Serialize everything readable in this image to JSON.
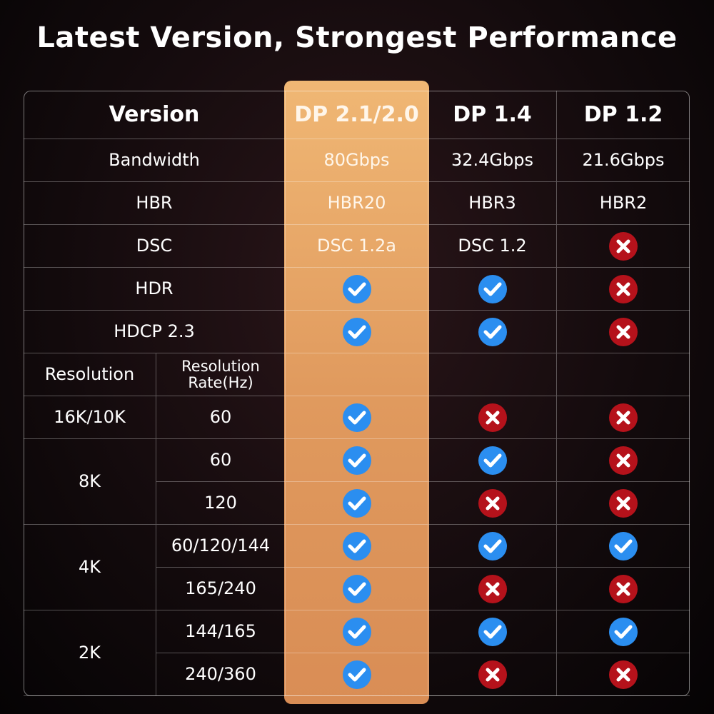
{
  "header": {
    "title": "Latest Version, Strongest Performance"
  },
  "table": {
    "columns": [
      "Version",
      "DP 2.1/2.0",
      "DP 1.4",
      "DP 1.2"
    ],
    "features": [
      {
        "label": "Bandwidth",
        "cells": [
          "80Gbps",
          "32.4Gbps",
          "21.6Gbps"
        ]
      },
      {
        "label": "HBR",
        "cells": [
          "HBR20",
          "HBR3",
          "HBR2"
        ]
      },
      {
        "label": "DSC",
        "cells": [
          "DSC 1.2a",
          "DSC 1.2",
          false
        ]
      },
      {
        "label": "HDR",
        "cells": [
          true,
          true,
          false
        ]
      },
      {
        "label": "HDCP 2.3",
        "cells": [
          true,
          true,
          false
        ]
      }
    ],
    "resolution_header": [
      "Resolution",
      "Resolution Rate(Hz)"
    ],
    "resolutions": [
      {
        "resolution": "16K/10K",
        "rates": [
          {
            "rate": "60",
            "support": [
              true,
              false,
              false
            ]
          }
        ]
      },
      {
        "resolution": "8K",
        "rates": [
          {
            "rate": "60",
            "support": [
              true,
              true,
              false
            ]
          },
          {
            "rate": "120",
            "support": [
              true,
              false,
              false
            ]
          }
        ]
      },
      {
        "resolution": "4K",
        "rates": [
          {
            "rate": "60/120/144",
            "support": [
              true,
              true,
              true
            ]
          },
          {
            "rate": "165/240",
            "support": [
              true,
              false,
              false
            ]
          }
        ]
      },
      {
        "resolution": "2K",
        "rates": [
          {
            "rate": "144/165",
            "support": [
              true,
              true,
              true
            ]
          },
          {
            "rate": "240/360",
            "support": [
              true,
              false,
              false
            ]
          }
        ]
      }
    ]
  }
}
